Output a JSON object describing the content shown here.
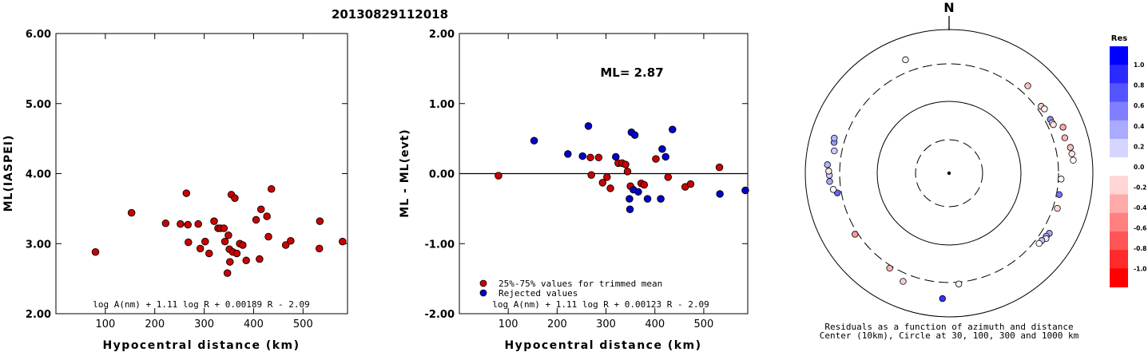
{
  "header": {
    "title": "20130829112018"
  },
  "chart_data": [
    {
      "type": "scatter",
      "title": "",
      "xlabel": "Hypocentral distance (km)",
      "ylabel": "ML(IASPEI)",
      "xlim": [
        0,
        590
      ],
      "ylim": [
        2.0,
        6.0
      ],
      "xticks": [
        "100",
        "200",
        "300",
        "400",
        "500"
      ],
      "yticks": [
        "2.00",
        "3.00",
        "4.00",
        "5.00",
        "6.00"
      ],
      "formula": "log A(nm) + 1.11 log R + 0.00189 R - 2.09",
      "series": [
        {
          "color": "#cc0000",
          "points": [
            [
              80,
              2.88
            ],
            [
              153,
              3.44
            ],
            [
              222,
              3.29
            ],
            [
              252,
              3.28
            ],
            [
              264,
              3.72
            ],
            [
              267,
              3.27
            ],
            [
              268,
              3.02
            ],
            [
              288,
              3.28
            ],
            [
              292,
              2.93
            ],
            [
              302,
              3.03
            ],
            [
              310,
              2.86
            ],
            [
              320,
              3.32
            ],
            [
              328,
              3.22
            ],
            [
              333,
              3.22
            ],
            [
              340,
              3.22
            ],
            [
              342,
              3.03
            ],
            [
              347,
              2.58
            ],
            [
              349,
              3.12
            ],
            [
              351,
              2.92
            ],
            [
              352,
              2.74
            ],
            [
              355,
              3.7
            ],
            [
              358,
              2.88
            ],
            [
              362,
              3.65
            ],
            [
              366,
              2.86
            ],
            [
              372,
              3.0
            ],
            [
              378,
              2.98
            ],
            [
              385,
              2.76
            ],
            [
              405,
              3.34
            ],
            [
              412,
              2.78
            ],
            [
              415,
              3.49
            ],
            [
              427,
              3.39
            ],
            [
              430,
              3.1
            ],
            [
              436,
              3.78
            ],
            [
              465,
              2.98
            ],
            [
              475,
              3.04
            ],
            [
              533,
              2.93
            ],
            [
              534,
              3.32
            ],
            [
              580,
              3.03
            ]
          ]
        }
      ]
    },
    {
      "type": "scatter",
      "title": "",
      "xlabel": "Hypocentral distance (km)",
      "ylabel": "ML - ML(evt)",
      "xlim": [
        0,
        590
      ],
      "ylim": [
        -2.0,
        2.0
      ],
      "xticks": [
        "100",
        "200",
        "300",
        "400",
        "500"
      ],
      "yticks": [
        "-2.00",
        "-1.00",
        "0.00",
        "1.00",
        "2.00"
      ],
      "ml_label": "ML= 2.87",
      "formula": "log A(nm) + 1.11 log R + 0.00123 R - 2.09",
      "legend": [
        {
          "label": "25%-75% values for trimmed mean",
          "color": "#cc0000"
        },
        {
          "label": "Rejected values",
          "color": "#0000cc"
        }
      ],
      "series": [
        {
          "name": "25%-75% values for trimmed mean",
          "color": "#cc0000",
          "points": [
            [
              80,
              -0.03
            ],
            [
              268,
              0.23
            ],
            [
              270,
              -0.02
            ],
            [
              285,
              0.23
            ],
            [
              293,
              -0.13
            ],
            [
              302,
              -0.05
            ],
            [
              309,
              -0.21
            ],
            [
              325,
              0.15
            ],
            [
              333,
              0.15
            ],
            [
              340,
              0.13
            ],
            [
              344,
              0.03
            ],
            [
              350,
              -0.18
            ],
            [
              372,
              -0.14
            ],
            [
              378,
              -0.16
            ],
            [
              402,
              0.21
            ],
            [
              427,
              -0.05
            ],
            [
              462,
              -0.19
            ],
            [
              473,
              -0.15
            ],
            [
              532,
              0.09
            ]
          ]
        },
        {
          "name": "Rejected values",
          "color": "#0000cc",
          "points": [
            [
              153,
              0.47
            ],
            [
              222,
              0.28
            ],
            [
              252,
              0.25
            ],
            [
              264,
              0.68
            ],
            [
              320,
              0.24
            ],
            [
              348,
              -0.36
            ],
            [
              349,
              -0.51
            ],
            [
              352,
              0.59
            ],
            [
              356,
              -0.23
            ],
            [
              359,
              0.55
            ],
            [
              366,
              -0.26
            ],
            [
              385,
              -0.36
            ],
            [
              412,
              -0.36
            ],
            [
              415,
              0.35
            ],
            [
              422,
              0.24
            ],
            [
              436,
              0.63
            ],
            [
              533,
              -0.29
            ],
            [
              585,
              -0.24
            ]
          ]
        }
      ]
    },
    {
      "type": "polar-scatter",
      "north_label": "N",
      "caption_line1": "Residuals as a function of azimuth and distance",
      "caption_line2": "Center (10km), Circle at 30, 100, 300 and 1000 km",
      "rings": [
        {
          "distance_km": 30,
          "style": "dashed"
        },
        {
          "distance_km": 100,
          "style": "solid"
        },
        {
          "distance_km": 300,
          "style": "dashed"
        },
        {
          "distance_km": 1000,
          "style": "solid"
        }
      ],
      "colorbar": {
        "title": "Res",
        "ticks": [
          "1.0",
          "0.8",
          "0.6",
          "0.4",
          "0.2",
          "0.0",
          "-0.2",
          "-0.4",
          "-0.6",
          "-0.8",
          "-1.0"
        ],
        "stops": [
          "#0000ff",
          "#2a2aff",
          "#5555ff",
          "#8080ff",
          "#aaaaff",
          "#d5d5ff",
          "#ffffff",
          "#ffd5d5",
          "#ffaaaa",
          "#ff8080",
          "#ff5555",
          "#ff2a2a",
          "#ff0000"
        ]
      },
      "points": [
        {
          "az": 339,
          "dist": 460,
          "res": 0.05
        },
        {
          "az": 42,
          "dist": 400,
          "res": -0.25
        },
        {
          "az": 54,
          "dist": 350,
          "res": -0.2
        },
        {
          "az": 56,
          "dist": 365,
          "res": -0.05
        },
        {
          "az": 62,
          "dist": 360,
          "res": 0.45
        },
        {
          "az": 64,
          "dist": 360,
          "res": -0.1
        },
        {
          "az": 65,
          "dist": 365,
          "res": -0.1
        },
        {
          "az": 68,
          "dist": 480,
          "res": -0.35
        },
        {
          "az": 73,
          "dist": 450,
          "res": -0.3
        },
        {
          "az": 78,
          "dist": 500,
          "res": -0.25
        },
        {
          "az": 81,
          "dist": 505,
          "res": -0.1
        },
        {
          "az": 84,
          "dist": 515,
          "res": 0.0
        },
        {
          "az": 93,
          "dist": 330,
          "res": 0.0
        },
        {
          "az": 101,
          "dist": 330,
          "res": 0.55
        },
        {
          "az": 108,
          "dist": 350,
          "res": -0.15
        },
        {
          "az": 121,
          "dist": 390,
          "res": 0.35
        },
        {
          "az": 123,
          "dist": 375,
          "res": 0.3
        },
        {
          "az": 124,
          "dist": 390,
          "res": 0.1
        },
        {
          "az": 126,
          "dist": 360,
          "res": 0.25
        },
        {
          "az": 128,
          "dist": 355,
          "res": 0.0
        },
        {
          "az": 175,
          "dist": 320,
          "res": 0.05
        },
        {
          "az": 183,
          "dist": 530,
          "res": 0.8
        },
        {
          "az": 203,
          "dist": 400,
          "res": -0.2
        },
        {
          "az": 212,
          "dist": 330,
          "res": -0.3
        },
        {
          "az": 237,
          "dist": 330,
          "res": -0.4
        },
        {
          "az": 260,
          "dist": 345,
          "res": 0.6
        },
        {
          "az": 262,
          "dist": 390,
          "res": 0.0
        },
        {
          "az": 266,
          "dist": 430,
          "res": 0.35
        },
        {
          "az": 269,
          "dist": 430,
          "res": 0.2
        },
        {
          "az": 271,
          "dist": 440,
          "res": -0.1
        },
        {
          "az": 274,
          "dist": 465,
          "res": 0.3
        },
        {
          "az": 281,
          "dist": 390,
          "res": 0.2
        },
        {
          "az": 285,
          "dist": 420,
          "res": 0.4
        },
        {
          "az": 287,
          "dist": 435,
          "res": 0.3
        }
      ]
    }
  ]
}
